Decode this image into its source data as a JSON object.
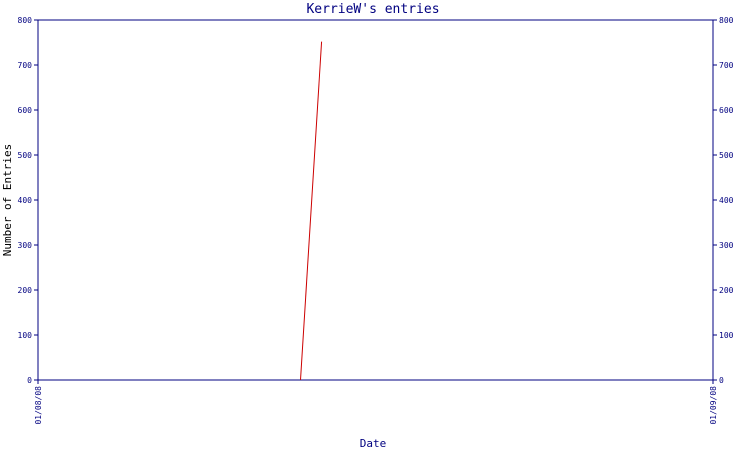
{
  "chart_data": {
    "type": "line",
    "title": "KerrieW's entries",
    "xlabel": "Date",
    "ylabel": "Number of Entries",
    "x_ticks": [
      "01/08/08",
      "01/09/08"
    ],
    "xlim": [
      "01/08/08",
      "01/09/08"
    ],
    "ylim": [
      0,
      800
    ],
    "y_ticks": [
      0,
      100,
      200,
      300,
      400,
      500,
      600,
      700,
      800
    ],
    "y_ticks_right": true,
    "grid": false,
    "legend": "none",
    "series": [
      {
        "color": "#cc0000",
        "points": [
          {
            "x": "01/08/08 09:20",
            "y": 0
          },
          {
            "x": "01/08/08 10:05",
            "y": 752
          }
        ]
      }
    ],
    "colors": {
      "axis": "#000080",
      "line": "#cc0000",
      "background": "#ffffff"
    }
  }
}
